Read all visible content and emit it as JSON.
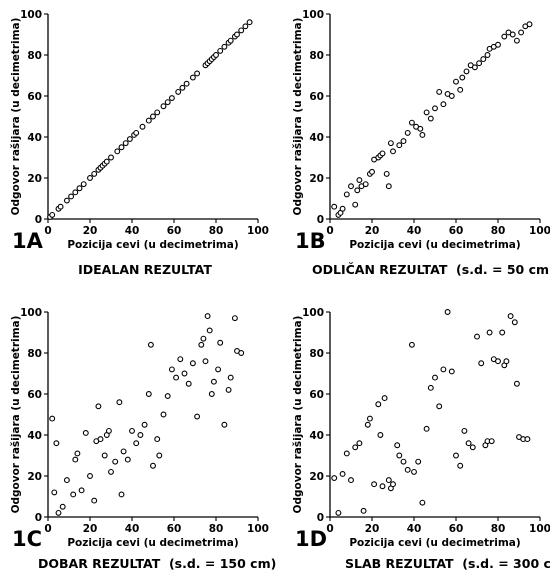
{
  "chart_data": [
    {
      "type": "scatter",
      "panel_label": "1A",
      "caption": "IDEALAN REZULTAT",
      "xlabel": "Pozicija cevi (u decimetrima)",
      "ylabel": "Odgovor rašijara (u decimetrima)",
      "xlim": [
        0,
        100
      ],
      "ylim": [
        0,
        100
      ],
      "xticks": [
        "0",
        "20",
        "40",
        "60",
        "80",
        "100"
      ],
      "yticks": [
        "0",
        "20",
        "40",
        "60",
        "80",
        "100"
      ],
      "x": [
        1,
        2,
        5,
        6,
        9,
        11,
        13,
        15,
        17,
        20,
        22,
        24,
        25,
        26,
        27,
        28,
        30,
        33,
        35,
        37,
        39,
        41,
        42,
        45,
        48,
        50,
        52,
        55,
        57,
        59,
        62,
        64,
        66,
        69,
        71,
        75,
        76,
        77,
        78,
        79,
        80,
        82,
        84,
        86,
        87,
        89,
        90,
        92,
        94,
        96
      ],
      "y": [
        1,
        2,
        5,
        6,
        9,
        11,
        13,
        15,
        17,
        20,
        22,
        24,
        25,
        26,
        27,
        28,
        30,
        33,
        35,
        37,
        39,
        41,
        42,
        45,
        48,
        50,
        52,
        55,
        57,
        59,
        62,
        64,
        66,
        69,
        71,
        75,
        76,
        77,
        78,
        79,
        80,
        82,
        84,
        86,
        87,
        89,
        90,
        92,
        94,
        96
      ]
    },
    {
      "type": "scatter",
      "panel_label": "1B",
      "caption": "ODLIČAN REZULTAT  (s.d. = 50 cm)",
      "xlabel": "Pozicija cevi (u decimetrima)",
      "ylabel": "Odgovor rašijara (u decimetrima)",
      "xlim": [
        0,
        100
      ],
      "ylim": [
        0,
        100
      ],
      "xticks": [
        "0",
        "20",
        "40",
        "60",
        "80",
        "100"
      ],
      "yticks": [
        "0",
        "20",
        "40",
        "60",
        "80",
        "100"
      ],
      "x": [
        2,
        4,
        5,
        6,
        8,
        10,
        12,
        13,
        14,
        15,
        17,
        19,
        20,
        21,
        23,
        24,
        25,
        27,
        28,
        29,
        30,
        33,
        35,
        37,
        39,
        41,
        43,
        44,
        46,
        48,
        50,
        52,
        54,
        56,
        58,
        60,
        62,
        63,
        65,
        67,
        69,
        71,
        73,
        75,
        76,
        78,
        80,
        83,
        85,
        87,
        89,
        91,
        93,
        95
      ],
      "y": [
        6,
        2,
        3,
        5,
        12,
        16,
        7,
        14,
        19,
        16,
        17,
        22,
        23,
        29,
        30,
        31,
        32,
        22,
        16,
        37,
        33,
        36,
        38,
        42,
        47,
        45,
        44,
        41,
        52,
        49,
        54,
        62,
        56,
        61,
        60,
        67,
        63,
        69,
        72,
        75,
        74,
        76,
        78,
        80,
        83,
        84,
        85,
        89,
        91,
        90,
        87,
        91,
        94,
        95
      ]
    },
    {
      "type": "scatter",
      "panel_label": "1C",
      "caption": "DOBAR REZULTAT  (s.d. = 150 cm)",
      "xlabel": "Pozicija cevi (u decimetrima)",
      "ylabel": "Odgovor rašijara (u decimetrima)",
      "xlim": [
        0,
        100
      ],
      "ylim": [
        0,
        100
      ],
      "xticks": [
        "0",
        "20",
        "40",
        "60",
        "80",
        "100"
      ],
      "yticks": [
        "0",
        "20",
        "40",
        "60",
        "80",
        "100"
      ],
      "x": [
        2,
        3,
        4,
        5,
        7,
        9,
        12,
        13,
        14,
        16,
        18,
        20,
        22,
        23,
        24,
        25,
        27,
        28,
        29,
        30,
        32,
        34,
        35,
        36,
        38,
        40,
        42,
        44,
        46,
        48,
        49,
        50,
        52,
        53,
        55,
        57,
        59,
        61,
        63,
        65,
        67,
        69,
        71,
        73,
        74,
        75,
        76,
        77,
        78,
        79,
        81,
        82,
        84,
        86,
        87,
        89,
        90,
        92
      ],
      "y": [
        48,
        12,
        36,
        2,
        5,
        18,
        11,
        28,
        31,
        13,
        41,
        20,
        8,
        37,
        54,
        38,
        30,
        40,
        42,
        22,
        27,
        56,
        11,
        32,
        28,
        42,
        36,
        40,
        45,
        60,
        84,
        25,
        38,
        30,
        50,
        59,
        72,
        68,
        77,
        70,
        65,
        75,
        49,
        84,
        87,
        76,
        98,
        91,
        60,
        66,
        72,
        85,
        45,
        62,
        68,
        97,
        81,
        80
      ]
    },
    {
      "type": "scatter",
      "panel_label": "1D",
      "caption": "SLAB REZULTAT  (s.d. = 300 cm)",
      "xlabel": "Pozicija cevi (u decimetrima)",
      "ylabel": "Odgovor rašijara (u decimetrima)",
      "xlim": [
        0,
        100
      ],
      "ylim": [
        0,
        100
      ],
      "xticks": [
        "0",
        "20",
        "40",
        "60",
        "80",
        "100"
      ],
      "yticks": [
        "0",
        "20",
        "40",
        "60",
        "80",
        "100"
      ],
      "x": [
        2,
        4,
        6,
        8,
        10,
        12,
        14,
        16,
        18,
        19,
        21,
        23,
        24,
        25,
        26,
        28,
        29,
        30,
        32,
        33,
        35,
        37,
        39,
        40,
        42,
        44,
        46,
        48,
        50,
        52,
        54,
        56,
        58,
        60,
        62,
        64,
        66,
        68,
        70,
        72,
        74,
        75,
        76,
        77,
        78,
        80,
        82,
        83,
        84,
        86,
        88,
        89,
        90,
        92,
        94
      ],
      "y": [
        19,
        2,
        21,
        31,
        18,
        34,
        36,
        3,
        45,
        48,
        16,
        55,
        40,
        15,
        58,
        18,
        14,
        16,
        35,
        30,
        27,
        23,
        84,
        22,
        27,
        7,
        43,
        63,
        68,
        54,
        72,
        100,
        71,
        30,
        25,
        42,
        36,
        34,
        88,
        75,
        35,
        37,
        90,
        37,
        77,
        76,
        90,
        74,
        76,
        98,
        95,
        65,
        39,
        38,
        38
      ]
    }
  ]
}
